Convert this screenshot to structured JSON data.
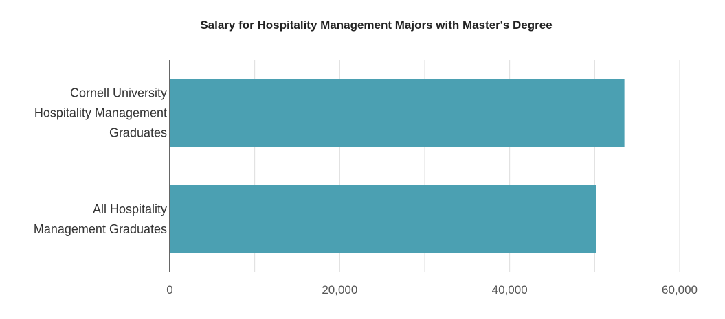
{
  "chart_data": {
    "type": "bar",
    "orientation": "horizontal",
    "title": "Salary for Hospitality Management Majors with Master's Degree",
    "xlabel": "",
    "ylabel": "",
    "categories": [
      [
        "Cornell University",
        "Hospitality Management",
        "Graduates"
      ],
      [
        "All Hospitality",
        "Management Graduates"
      ]
    ],
    "values": [
      53500,
      50200
    ],
    "xlim": [
      0,
      60000
    ],
    "xticks": [
      0,
      20000,
      40000,
      60000
    ],
    "xtick_labels": [
      "0",
      "20,000",
      "40,000",
      "60,000"
    ],
    "grid": true,
    "legend": "none",
    "colors": {
      "bar": "#4ba0b2",
      "grid": "#dddddd",
      "axis": "#333333",
      "tick_text": "#555555",
      "category_text": "#333333"
    }
  }
}
